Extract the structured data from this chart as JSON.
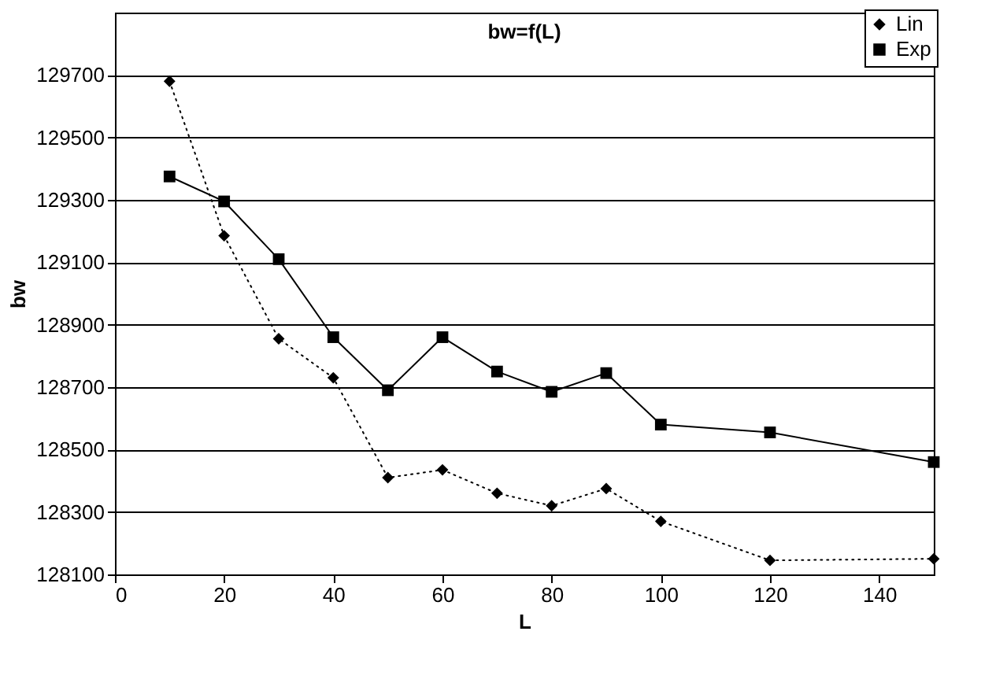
{
  "chart_data": {
    "type": "line",
    "title": "bw=f(L)",
    "xlabel": "L",
    "ylabel": "bw",
    "x": [
      10,
      20,
      30,
      40,
      50,
      60,
      70,
      80,
      90,
      100,
      120,
      150
    ],
    "series": [
      {
        "name": "Lin",
        "color": "#000000",
        "marker": "diamond",
        "line_style": "dotted",
        "values": [
          129680,
          129185,
          128855,
          128730,
          128410,
          128435,
          128360,
          128320,
          128375,
          128270,
          128145,
          128150
        ]
      },
      {
        "name": "Exp",
        "color": "#000000",
        "marker": "square",
        "line_style": "solid",
        "values": [
          129375,
          129295,
          129110,
          128860,
          128690,
          128860,
          128750,
          128685,
          128745,
          128580,
          128555,
          128460
        ]
      }
    ],
    "xlim": [
      0,
      150
    ],
    "xticks": [
      0,
      20,
      40,
      60,
      80,
      100,
      120,
      140
    ],
    "ylim": [
      128100,
      129900
    ],
    "yticks": [
      128100,
      128300,
      128500,
      128700,
      128900,
      129100,
      129300,
      129500,
      129700
    ],
    "grid": "y",
    "legend": "top right"
  }
}
